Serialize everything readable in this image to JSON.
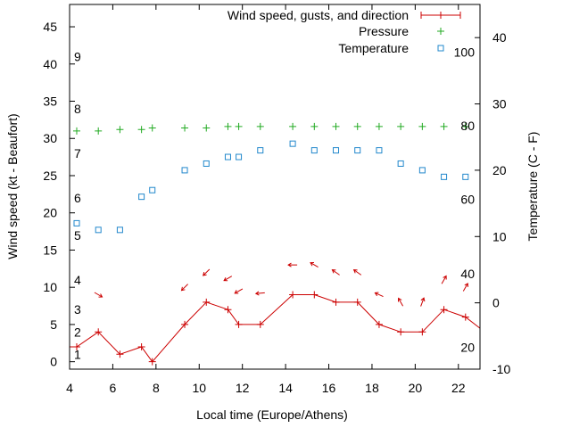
{
  "chart_data": {
    "type": "line",
    "xlabel": "Local time (Europe/Athens)",
    "ylabel": "Wind speed (kt - Beaufort)",
    "y2label": "Temperature (C - F)",
    "xlim": [
      4,
      23
    ],
    "ylim": [
      -1,
      48
    ],
    "y2lim": [
      -10,
      45
    ],
    "x_ticks": [
      "4",
      "6",
      "8",
      "10",
      "12",
      "14",
      "16",
      "18",
      "20",
      "22"
    ],
    "y_ticks": [
      "0",
      "5",
      "10",
      "15",
      "20",
      "25",
      "30",
      "35",
      "40",
      "45"
    ],
    "y2_ticks": [
      "-10",
      "0",
      "10",
      "20",
      "30",
      "40"
    ],
    "beaufort_labels": [
      {
        "label": "1",
        "y": 1
      },
      {
        "label": "2",
        "y": 4
      },
      {
        "label": "3",
        "y": 7
      },
      {
        "label": "4",
        "y": 11
      },
      {
        "label": "5",
        "y": 17
      },
      {
        "label": "6",
        "y": 22
      },
      {
        "label": "7",
        "y": 28
      },
      {
        "label": "8",
        "y": 34
      },
      {
        "label": "9",
        "y": 41
      }
    ],
    "fahrenheit_labels": [
      {
        "label": "20",
        "y2": -6.7
      },
      {
        "label": "40",
        "y2": 4.4
      },
      {
        "label": "60",
        "y2": 15.6
      },
      {
        "label": "80",
        "y2": 26.7
      },
      {
        "label": "100",
        "y2": 37.8
      }
    ],
    "legend": {
      "position": "top-right",
      "wind": "Wind speed, gusts, and direction",
      "pressure": "Pressure",
      "temperature": "Temperature"
    },
    "colors": {
      "wind": "#cc0000",
      "pressure": "#22aa22",
      "temperature": "#2288cc"
    },
    "series": [
      {
        "name": "Wind speed, gusts, and direction",
        "x": [
          4.0,
          4.33,
          5.33,
          6.33,
          7.33,
          7.83,
          9.33,
          10.33,
          11.33,
          11.83,
          12.83,
          14.33,
          15.33,
          16.33,
          17.33,
          18.33,
          19.33,
          20.33,
          21.33,
          22.33,
          23.0
        ],
        "y": [
          2,
          2,
          4,
          1,
          2,
          0,
          5,
          8,
          7,
          5,
          5,
          9,
          9,
          8,
          8,
          5,
          4,
          4,
          7,
          6,
          4.5
        ]
      },
      {
        "name": "Pressure",
        "x": [
          4.33,
          5.33,
          6.33,
          7.33,
          7.83,
          9.33,
          10.33,
          11.33,
          11.83,
          12.83,
          14.33,
          15.33,
          16.33,
          17.33,
          18.33,
          19.33,
          20.33,
          21.33,
          22.33
        ],
        "y": [
          31,
          31,
          31.2,
          31.2,
          31.4,
          31.4,
          31.4,
          31.6,
          31.6,
          31.6,
          31.6,
          31.6,
          31.6,
          31.6,
          31.6,
          31.6,
          31.6,
          31.6,
          31.6
        ]
      },
      {
        "name": "Temperature",
        "x": [
          4.33,
          5.33,
          6.33,
          7.33,
          7.83,
          9.33,
          10.33,
          11.33,
          11.83,
          12.83,
          14.33,
          15.33,
          16.33,
          17.33,
          18.33,
          19.33,
          20.33,
          21.33,
          22.33
        ],
        "y2": [
          12,
          11,
          11,
          16,
          17,
          20,
          21,
          22,
          22,
          23,
          24,
          23,
          23,
          23,
          23,
          21,
          20,
          19,
          19
        ]
      }
    ],
    "wind_direction_arrows": [
      {
        "x": 5.33,
        "y": 9.0,
        "angle": 30
      },
      {
        "x": 9.33,
        "y": 10.0,
        "angle": 135
      },
      {
        "x": 10.33,
        "y": 12.0,
        "angle": 135
      },
      {
        "x": 11.33,
        "y": 11.2,
        "angle": 150
      },
      {
        "x": 11.83,
        "y": 9.5,
        "angle": 150
      },
      {
        "x": 12.83,
        "y": 9.2,
        "angle": 175
      },
      {
        "x": 14.33,
        "y": 13.0,
        "angle": 180
      },
      {
        "x": 15.33,
        "y": 13.0,
        "angle": 210
      },
      {
        "x": 16.33,
        "y": 12.0,
        "angle": 215
      },
      {
        "x": 17.33,
        "y": 12.0,
        "angle": 215
      },
      {
        "x": 18.33,
        "y": 9.0,
        "angle": 205
      },
      {
        "x": 19.33,
        "y": 8.0,
        "angle": 240
      },
      {
        "x": 20.33,
        "y": 8.0,
        "angle": 290
      },
      {
        "x": 21.33,
        "y": 11.0,
        "angle": 300
      },
      {
        "x": 22.33,
        "y": 10.0,
        "angle": 300
      }
    ]
  }
}
